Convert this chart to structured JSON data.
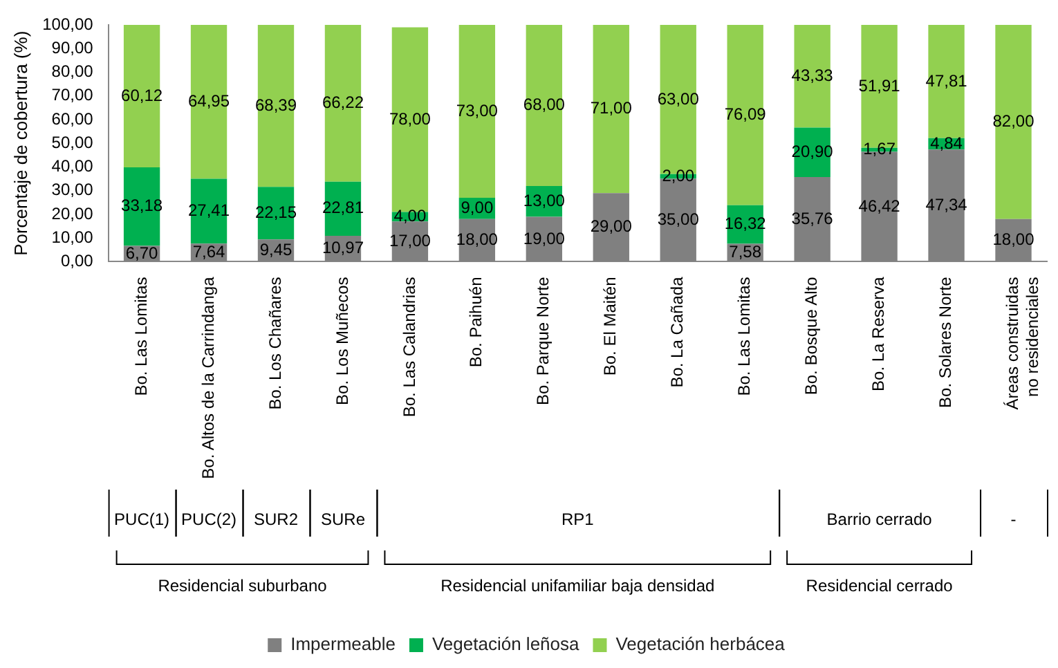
{
  "chart_data": {
    "type": "bar",
    "stacked": true,
    "ylabel": "Porcentaje de cobertura (%)",
    "categories": [
      "Bo. Las Lomitas",
      "Bo. Altos de la Carrindanga",
      "Bo. Los Chañares",
      "Bo. Los Muñecos",
      "Bo. Las Calandrias",
      "Bo. Paihuén",
      "Bo. Parque Norte",
      "Bo. El Maitén",
      "Bo. La Cañada",
      "Bo. Las Lomitas",
      "Bo. Bosque Alto",
      "Bo. La Reserva",
      "Bo. Solares Norte",
      "Áreas construidas no residenciales"
    ],
    "series": [
      {
        "name": "Impermeable",
        "color": "#808080",
        "values": [
          6.7,
          7.64,
          9.45,
          10.97,
          17.0,
          18.0,
          19.0,
          29.0,
          35.0,
          7.58,
          35.76,
          46.42,
          47.34,
          18.0
        ],
        "value_labels": [
          "6,70",
          "7,64",
          "9,45",
          "10,97",
          "17,00",
          "18,00",
          "19,00",
          "29,00",
          "35,00",
          "7,58",
          "35,76",
          "46,42",
          "47,34",
          "18,00"
        ]
      },
      {
        "name": "Vegetación leñosa",
        "color": "#00b050",
        "values": [
          33.18,
          27.41,
          22.15,
          22.81,
          4.0,
          9.0,
          13.0,
          null,
          2.0,
          16.32,
          20.9,
          1.67,
          4.84,
          null
        ],
        "value_labels": [
          "33,18",
          "27,41",
          "22,15",
          "22,81",
          "4,00",
          "9,00",
          "13,00",
          null,
          "2,00",
          "16,32",
          "20,90",
          "1,67",
          "4,84",
          null
        ]
      },
      {
        "name": "Vegetación herbácea",
        "color": "#92d050",
        "values": [
          60.12,
          64.95,
          68.39,
          66.22,
          78.0,
          73.0,
          68.0,
          71.0,
          63.0,
          76.09,
          43.33,
          51.91,
          47.81,
          82.0
        ],
        "value_labels": [
          "60,12",
          "64,95",
          "68,39",
          "66,22",
          "78,00",
          "73,00",
          "68,00",
          "71,00",
          "63,00",
          "76,09",
          "43,33",
          "51,91",
          "47,81",
          "82,00"
        ]
      }
    ],
    "ylim": [
      0,
      100
    ],
    "yticks": [
      {
        "value": 0,
        "label": "0,00"
      },
      {
        "value": 10,
        "label": "10,00"
      },
      {
        "value": 20,
        "label": "20,00"
      },
      {
        "value": 30,
        "label": "30,00"
      },
      {
        "value": 40,
        "label": "40,00"
      },
      {
        "value": 50,
        "label": "50,00"
      },
      {
        "value": 60,
        "label": "60,00"
      },
      {
        "value": 70,
        "label": "70,00"
      },
      {
        "value": 80,
        "label": "80,00"
      },
      {
        "value": 90,
        "label": "90,00"
      },
      {
        "value": 100,
        "label": "100,00"
      }
    ],
    "grid": false,
    "legend": "bottom",
    "annotations": [
      "PUC(1)",
      "PUC(2)",
      "SUR2",
      "SURe",
      "RP1",
      "Barrio cerrado",
      "-",
      "Residencial suburbano",
      "Residencial unifamiliar baja densidad",
      "Residencial cerrado"
    ]
  }
}
